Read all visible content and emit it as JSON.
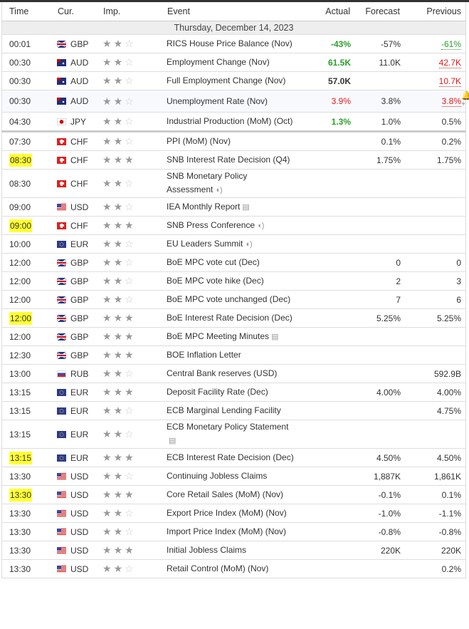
{
  "header": {
    "time": "Time",
    "cur": "Cur.",
    "imp": "Imp.",
    "event": "Event",
    "actual": "Actual",
    "forecast": "Forecast",
    "previous": "Previous"
  },
  "date": "Thursday, December 14, 2023",
  "colors": {
    "positive": "#2aa12a",
    "negative": "#e21a1a",
    "highlight": "#ffff33"
  },
  "rows": [
    {
      "time": "00:01",
      "cur": "GBP",
      "imp": 2,
      "event": "RICS House Price Balance (Nov)",
      "actual": "-43%",
      "actual_color": "green",
      "forecast": "-57%",
      "previous": "-61%",
      "previous_color": "green"
    },
    {
      "time": "00:30",
      "cur": "AUD",
      "imp": 2,
      "event": "Employment Change (Nov)",
      "actual": "61.5K",
      "actual_color": "green",
      "forecast": "11.0K",
      "previous": "42.7K",
      "previous_color": "red"
    },
    {
      "time": "00:30",
      "cur": "AUD",
      "imp": 2,
      "event": "Full Employment Change (Nov)",
      "actual": "57.0K",
      "actual_color": "black",
      "forecast": "",
      "previous": "10.7K",
      "previous_color": "red"
    },
    {
      "time": "00:30",
      "cur": "AUD",
      "imp": 2,
      "event": "Unemployment Rate (Nov)",
      "actual": "3.9%",
      "actual_color": "red",
      "forecast": "3.8%",
      "previous": "3.8%",
      "previous_color": "red",
      "bell": true
    },
    {
      "time": "04:30",
      "cur": "JPY",
      "imp": 2,
      "event": "Industrial Production (MoM) (Oct)",
      "actual": "1.3%",
      "actual_color": "green",
      "forecast": "1.0%",
      "previous": "0.5%",
      "sep": true
    },
    {
      "time": "07:30",
      "cur": "CHF",
      "imp": 2,
      "event": "PPI (MoM) (Nov)",
      "actual": "",
      "forecast": "0.1%",
      "previous": "0.2%"
    },
    {
      "time": "08:30",
      "cur": "CHF",
      "imp": 3,
      "event": "SNB Interest Rate Decision (Q4)",
      "actual": "",
      "forecast": "1.75%",
      "previous": "1.75%",
      "highlight": true
    },
    {
      "time": "08:30",
      "cur": "CHF",
      "imp": 2,
      "event": "SNB Monetary Policy Assessment",
      "icon": "speaker-icon",
      "actual": "",
      "forecast": "",
      "previous": ""
    },
    {
      "time": "09:00",
      "cur": "USD",
      "imp": 2,
      "event": "IEA Monthly Report",
      "icon": "report-icon",
      "actual": "",
      "forecast": "",
      "previous": ""
    },
    {
      "time": "09:00",
      "cur": "CHF",
      "imp": 3,
      "event": "SNB Press Conference",
      "icon": "speaker-icon",
      "actual": "",
      "forecast": "",
      "previous": "",
      "highlight": true
    },
    {
      "time": "10:00",
      "cur": "EUR",
      "imp": 2,
      "event": "EU Leaders Summit",
      "icon": "speaker-icon",
      "actual": "",
      "forecast": "",
      "previous": ""
    },
    {
      "time": "12:00",
      "cur": "GBP",
      "imp": 2,
      "event": "BoE MPC vote cut (Dec)",
      "actual": "",
      "forecast": "0",
      "previous": "0"
    },
    {
      "time": "12:00",
      "cur": "GBP",
      "imp": 2,
      "event": "BoE MPC vote hike (Dec)",
      "actual": "",
      "forecast": "2",
      "previous": "3"
    },
    {
      "time": "12:00",
      "cur": "GBP",
      "imp": 2,
      "event": "BoE MPC vote unchanged (Dec)",
      "actual": "",
      "forecast": "7",
      "previous": "6"
    },
    {
      "time": "12:00",
      "cur": "GBP",
      "imp": 3,
      "event": "BoE Interest Rate Decision (Dec)",
      "actual": "",
      "forecast": "5.25%",
      "previous": "5.25%",
      "highlight": true
    },
    {
      "time": "12:00",
      "cur": "GBP",
      "imp": 3,
      "event": "BoE MPC Meeting Minutes",
      "icon": "report-icon",
      "actual": "",
      "forecast": "",
      "previous": ""
    },
    {
      "time": "12:30",
      "cur": "GBP",
      "imp": 3,
      "event": "BOE Inflation Letter",
      "actual": "",
      "forecast": "",
      "previous": ""
    },
    {
      "time": "13:00",
      "cur": "RUB",
      "imp": 2,
      "event": "Central Bank reserves (USD)",
      "actual": "",
      "forecast": "",
      "previous": "592.9B"
    },
    {
      "time": "13:15",
      "cur": "EUR",
      "imp": 3,
      "event": "Deposit Facility Rate (Dec)",
      "actual": "",
      "forecast": "4.00%",
      "previous": "4.00%"
    },
    {
      "time": "13:15",
      "cur": "EUR",
      "imp": 2,
      "event": "ECB Marginal Lending Facility",
      "actual": "",
      "forecast": "",
      "previous": "4.75%"
    },
    {
      "time": "13:15",
      "cur": "EUR",
      "imp": 2,
      "event": "ECB Monetary Policy Statement",
      "icon": "report-icon",
      "icon_break": true,
      "actual": "",
      "forecast": "",
      "previous": ""
    },
    {
      "time": "13:15",
      "cur": "EUR",
      "imp": 3,
      "event": "ECB Interest Rate Decision (Dec)",
      "actual": "",
      "forecast": "4.50%",
      "previous": "4.50%",
      "highlight": true
    },
    {
      "time": "13:30",
      "cur": "USD",
      "imp": 2,
      "event": "Continuing Jobless Claims",
      "actual": "",
      "forecast": "1,887K",
      "previous": "1,861K"
    },
    {
      "time": "13:30",
      "cur": "USD",
      "imp": 3,
      "event": "Core Retail Sales (MoM) (Nov)",
      "actual": "",
      "forecast": "-0.1%",
      "previous": "0.1%",
      "highlight": true
    },
    {
      "time": "13:30",
      "cur": "USD",
      "imp": 2,
      "event": "Export Price Index (MoM) (Nov)",
      "actual": "",
      "forecast": "-1.0%",
      "previous": "-1.1%"
    },
    {
      "time": "13:30",
      "cur": "USD",
      "imp": 2,
      "event": "Import Price Index (MoM) (Nov)",
      "actual": "",
      "forecast": "-0.8%",
      "previous": "-0.8%"
    },
    {
      "time": "13:30",
      "cur": "USD",
      "imp": 3,
      "event": "Initial Jobless Claims",
      "actual": "",
      "forecast": "220K",
      "previous": "220K"
    },
    {
      "time": "13:30",
      "cur": "USD",
      "imp": 2,
      "event": "Retail Control (MoM) (Nov)",
      "actual": "",
      "forecast": "",
      "previous": "0.2%"
    }
  ]
}
